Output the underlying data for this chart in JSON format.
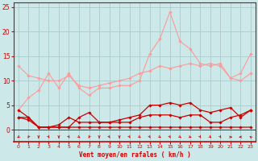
{
  "x": [
    0,
    1,
    2,
    3,
    4,
    5,
    6,
    7,
    8,
    9,
    10,
    11,
    12,
    13,
    14,
    15,
    16,
    17,
    18,
    19,
    20,
    21,
    22,
    23
  ],
  "background_color": "#cce8e8",
  "grid_color": "#aacccc",
  "xlabel": "Vent moyen/en rafales ( km/h )",
  "xlabel_color": "#cc0000",
  "tick_color": "#cc0000",
  "series_light": [
    {
      "y": [
        13.0,
        11.0,
        10.5,
        10.0,
        10.0,
        11.0,
        9.0,
        8.5,
        9.0,
        9.5,
        10.0,
        10.5,
        11.5,
        12.0,
        13.0,
        12.5,
        13.0,
        13.5,
        13.0,
        13.5,
        13.0,
        10.5,
        11.5,
        15.5
      ],
      "color": "#ff9999"
    },
    {
      "y": [
        4.0,
        6.5,
        8.0,
        11.5,
        8.5,
        11.5,
        8.5,
        7.0,
        8.5,
        8.5,
        9.0,
        9.0,
        10.0,
        15.5,
        18.5,
        24.0,
        18.0,
        16.5,
        13.5,
        13.0,
        13.5,
        10.5,
        10.0,
        11.5
      ],
      "color": "#ff9999"
    }
  ],
  "series_dark": [
    {
      "y": [
        4.0,
        2.5,
        0.5,
        0.5,
        1.0,
        2.5,
        1.5,
        1.5,
        1.5,
        1.5,
        2.0,
        2.5,
        3.0,
        5.0,
        5.0,
        5.5,
        5.0,
        5.5,
        4.0,
        3.5,
        4.0,
        4.5,
        2.5,
        4.0
      ],
      "color": "#cc0000"
    },
    {
      "y": [
        2.5,
        2.0,
        0.5,
        0.5,
        0.5,
        0.5,
        2.5,
        3.5,
        1.5,
        1.5,
        1.5,
        1.5,
        2.5,
        3.0,
        3.0,
        3.0,
        2.5,
        3.0,
        3.0,
        1.5,
        1.5,
        2.5,
        3.0,
        4.0
      ],
      "color": "#cc0000"
    },
    {
      "y": [
        2.5,
        2.5,
        0.5,
        0.5,
        0.5,
        0.5,
        0.5,
        0.5,
        0.5,
        0.5,
        0.5,
        0.5,
        0.5,
        0.5,
        0.5,
        0.5,
        0.5,
        0.5,
        0.5,
        0.5,
        0.5,
        0.5,
        0.5,
        0.5
      ],
      "color": "#cc0000"
    }
  ],
  "wind_dir": [
    225,
    202,
    180,
    157,
    180,
    157,
    135,
    202,
    180,
    157,
    180,
    157,
    135,
    157,
    135,
    157,
    135,
    112,
    157,
    135,
    157,
    90,
    270,
    315
  ],
  "ylim": [
    -2.5,
    26
  ],
  "yticks": [
    0,
    5,
    10,
    15,
    20,
    25
  ],
  "xticks": [
    0,
    1,
    2,
    3,
    4,
    5,
    6,
    7,
    8,
    9,
    10,
    11,
    12,
    13,
    14,
    15,
    16,
    17,
    18,
    19,
    20,
    21,
    22,
    23
  ]
}
